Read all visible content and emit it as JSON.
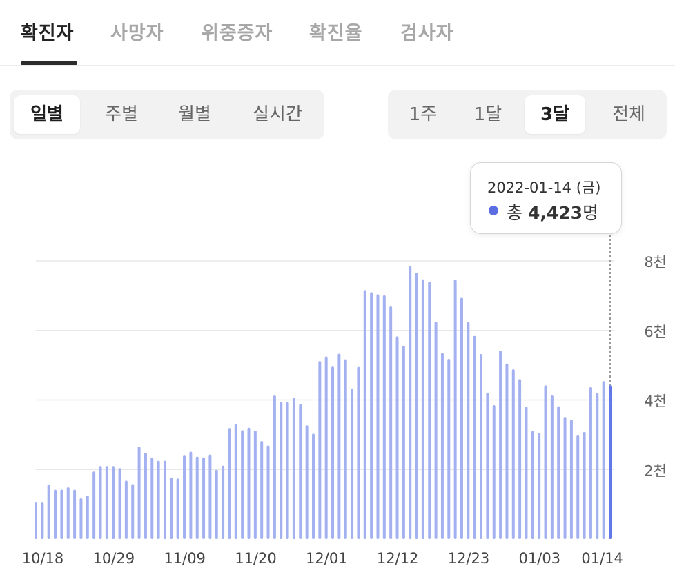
{
  "top_tabs": [
    {
      "label": "확진자",
      "active": true
    },
    {
      "label": "사망자",
      "active": false
    },
    {
      "label": "위중증자",
      "active": false
    },
    {
      "label": "확진율",
      "active": false
    },
    {
      "label": "검사자",
      "active": false
    }
  ],
  "period_tabs": [
    {
      "label": "일별",
      "active": true
    },
    {
      "label": "주별",
      "active": false
    },
    {
      "label": "월별",
      "active": false
    },
    {
      "label": "실시간",
      "active": false
    }
  ],
  "range_tabs": [
    {
      "label": "1주",
      "active": false
    },
    {
      "label": "1달",
      "active": false
    },
    {
      "label": "3달",
      "active": true
    },
    {
      "label": "전체",
      "active": false
    }
  ],
  "tooltip": {
    "date": "2022-01-14 (금)",
    "prefix": "총",
    "value": "4,423",
    "unit": "명"
  },
  "colors": {
    "bar": "#a3b1f0",
    "bar_highlight": "#6477e6",
    "grid": "#e8e8e8",
    "dot": "#5b6de0"
  },
  "chart_data": {
    "type": "bar",
    "x_start": "10/18",
    "x_end": "01/14",
    "x_ticks": [
      "10/18",
      "10/29",
      "11/09",
      "11/20",
      "12/01",
      "12/12",
      "12/23",
      "01/03",
      "01/14"
    ],
    "y_ticks": [
      2000,
      4000,
      6000,
      8000
    ],
    "y_tick_labels": [
      "2천",
      "4천",
      "6천",
      "8천"
    ],
    "ylim": [
      0,
      8000
    ],
    "grid": true,
    "highlight_last": true,
    "values": [
      1050,
      1050,
      1570,
      1420,
      1420,
      1490,
      1420,
      1170,
      1250,
      1940,
      2100,
      2100,
      2100,
      2040,
      1680,
      1580,
      2660,
      2480,
      2340,
      2250,
      2250,
      1770,
      1740,
      2420,
      2510,
      2370,
      2350,
      2430,
      1990,
      2110,
      3190,
      3300,
      3130,
      3200,
      3120,
      2820,
      2690,
      4130,
      3950,
      3940,
      4070,
      3880,
      3270,
      3030,
      5120,
      5250,
      4960,
      5330,
      5170,
      4330,
      4950,
      7160,
      7100,
      7040,
      7010,
      6690,
      5830,
      5560,
      7850,
      7660,
      7470,
      7400,
      6250,
      5350,
      5180,
      7460,
      6940,
      6240,
      5840,
      5320,
      4210,
      3850,
      5420,
      5050,
      4880,
      4600,
      3810,
      3100,
      3040,
      4420,
      4130,
      3820,
      3510,
      3430,
      3000,
      3080,
      4370,
      4200,
      4540,
      4423
    ]
  }
}
